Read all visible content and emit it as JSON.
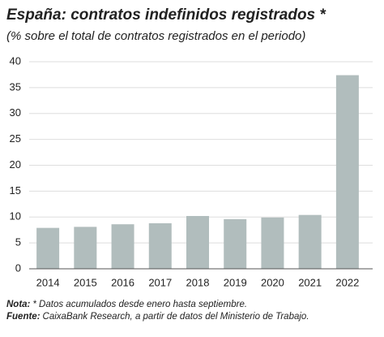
{
  "chart_data": {
    "type": "bar",
    "title": "España: contratos indefinidos registrados *",
    "subtitle": "(% sobre el total de contratos registrados en el periodo)",
    "categories": [
      "2014",
      "2015",
      "2016",
      "2017",
      "2018",
      "2019",
      "2020",
      "2021",
      "2022"
    ],
    "values": [
      7.9,
      8.1,
      8.6,
      8.8,
      10.2,
      9.6,
      9.9,
      10.4,
      37.4
    ],
    "color": "#b1bdbd",
    "ylim": [
      0,
      40
    ],
    "yticks": [
      0,
      5,
      10,
      15,
      20,
      25,
      30,
      35,
      40
    ],
    "grid": true,
    "notes": [
      {
        "label": "Nota:",
        "text": "* Datos acumulados desde enero hasta septiembre."
      },
      {
        "label": "Fuente:",
        "text": "CaixaBank Research, a partir de datos del Ministerio de Trabajo."
      }
    ]
  }
}
